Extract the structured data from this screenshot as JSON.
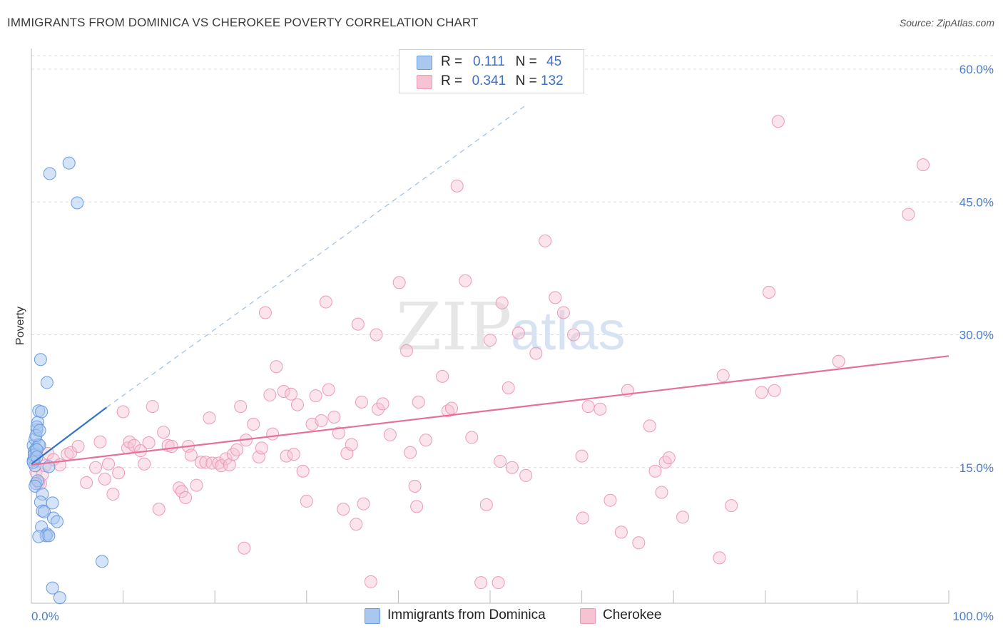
{
  "header": {
    "title": "IMMIGRANTS FROM DOMINICA VS CHEROKEE POVERTY CORRELATION CHART",
    "source": "Source: ZipAtlas.com"
  },
  "watermark": {
    "part1": "ZIP",
    "part2": "atlas"
  },
  "legend": {
    "series1": {
      "r_label": "R = ",
      "r_value": "0.111",
      "n_label": "N = ",
      "n_value": "45"
    },
    "series2": {
      "r_label": "R = ",
      "r_value": "0.341",
      "n_label": "N = ",
      "n_value": "132"
    }
  },
  "bottom_legend": {
    "series1": "Immigrants from Dominica",
    "series2": "Cherokee"
  },
  "colors": {
    "blue_fill": "#a9c7ef",
    "blue_stroke": "#6a9be0",
    "blue_line": "#2f74d0",
    "pink_fill": "#f6c3d3",
    "pink_stroke": "#ec9ab6",
    "pink_line": "#e5709b",
    "grid": "#dcdcdc",
    "tick_text": "#4a7cc9"
  },
  "chart_data": {
    "type": "scatter",
    "title": "IMMIGRANTS FROM DOMINICA VS CHEROKEE POVERTY CORRELATION CHART",
    "xlabel": "",
    "ylabel": "Poverty",
    "xlim": [
      0,
      100
    ],
    "ylim": [
      0,
      60
    ],
    "x_tick_labels": [
      "0.0%",
      "100.0%"
    ],
    "y_ticks": [
      15,
      30,
      45,
      60
    ],
    "y_tick_labels": [
      "15.0%",
      "30.0%",
      "45.0%",
      "60.0%"
    ],
    "grid": true,
    "legend_position": "top-center",
    "series": [
      {
        "name": "Immigrants from Dominica",
        "R": 0.111,
        "N": 45,
        "trend": {
          "x": [
            0,
            8.2
          ],
          "y": [
            15.4,
            21.8
          ]
        },
        "trend_extension": {
          "x": [
            8.2,
            54
          ],
          "y": [
            21.8,
            56
          ]
        },
        "points": [
          [
            0.2,
            17.5
          ],
          [
            0.4,
            18.2
          ],
          [
            0.3,
            16.8
          ],
          [
            0.5,
            17.1
          ],
          [
            0.6,
            19.3
          ],
          [
            0.3,
            16.0
          ],
          [
            0.8,
            17.6
          ],
          [
            0.5,
            16.5
          ],
          [
            0.2,
            15.8
          ],
          [
            0.4,
            15.2
          ],
          [
            0.7,
            20.1
          ],
          [
            0.8,
            21.4
          ],
          [
            0.6,
            19.6
          ],
          [
            1.1,
            21.3
          ],
          [
            0.9,
            17.5
          ],
          [
            0.3,
            16.4
          ],
          [
            0.5,
            18.6
          ],
          [
            0.2,
            15.6
          ],
          [
            0.6,
            17.0
          ],
          [
            0.9,
            19.2
          ],
          [
            1.0,
            27.2
          ],
          [
            1.7,
            24.6
          ],
          [
            0.5,
            13.2
          ],
          [
            0.7,
            13.5
          ],
          [
            0.4,
            12.9
          ],
          [
            1.2,
            12.0
          ],
          [
            1.0,
            11.1
          ],
          [
            2.3,
            11.0
          ],
          [
            1.2,
            10.1
          ],
          [
            1.4,
            10.0
          ],
          [
            2.4,
            9.3
          ],
          [
            2.8,
            8.9
          ],
          [
            1.1,
            8.3
          ],
          [
            1.7,
            7.5
          ],
          [
            1.6,
            7.3
          ],
          [
            0.8,
            7.2
          ],
          [
            1.9,
            7.3
          ],
          [
            2.0,
            48.2
          ],
          [
            4.1,
            49.4
          ],
          [
            5.0,
            44.9
          ],
          [
            7.7,
            4.4
          ],
          [
            2.3,
            1.4
          ],
          [
            3.1,
            0.3
          ],
          [
            0.6,
            16.2
          ],
          [
            1.9,
            15.1
          ]
        ]
      },
      {
        "name": "Cherokee",
        "R": 0.341,
        "N": 132,
        "trend": {
          "x": [
            0,
            100
          ],
          "y": [
            15.3,
            27.6
          ]
        },
        "points": [
          [
            0.5,
            14.5
          ],
          [
            0.8,
            13.3
          ],
          [
            1.0,
            13.2
          ],
          [
            1.2,
            14.2
          ],
          [
            1.5,
            15.2
          ],
          [
            1.8,
            16.6
          ],
          [
            2.4,
            15.9
          ],
          [
            3.1,
            15.3
          ],
          [
            3.9,
            16.5
          ],
          [
            4.3,
            16.7
          ],
          [
            5.1,
            17.4
          ],
          [
            6.0,
            13.3
          ],
          [
            7.0,
            15.0
          ],
          [
            7.5,
            17.9
          ],
          [
            8.0,
            13.7
          ],
          [
            8.4,
            15.4
          ],
          [
            8.9,
            12.0
          ],
          [
            9.5,
            14.4
          ],
          [
            10.0,
            21.3
          ],
          [
            10.5,
            17.2
          ],
          [
            10.7,
            17.9
          ],
          [
            11.2,
            17.5
          ],
          [
            11.9,
            16.9
          ],
          [
            12.3,
            15.4
          ],
          [
            12.8,
            17.8
          ],
          [
            13.2,
            21.9
          ],
          [
            13.9,
            10.3
          ],
          [
            14.4,
            19.0
          ],
          [
            14.9,
            17.5
          ],
          [
            15.3,
            17.4
          ],
          [
            16.1,
            12.7
          ],
          [
            16.4,
            12.3
          ],
          [
            16.8,
            11.6
          ],
          [
            17.1,
            17.4
          ],
          [
            17.4,
            16.4
          ],
          [
            18.0,
            13.0
          ],
          [
            18.5,
            15.6
          ],
          [
            19.0,
            15.6
          ],
          [
            19.4,
            20.6
          ],
          [
            19.7,
            15.5
          ],
          [
            20.4,
            15.5
          ],
          [
            20.7,
            15.2
          ],
          [
            21.2,
            16.0
          ],
          [
            21.6,
            15.3
          ],
          [
            22.0,
            16.5
          ],
          [
            22.4,
            17.0
          ],
          [
            22.8,
            21.9
          ],
          [
            23.2,
            5.9
          ],
          [
            23.4,
            18.1
          ],
          [
            24.2,
            19.9
          ],
          [
            24.8,
            16.2
          ],
          [
            25.1,
            17.2
          ],
          [
            25.5,
            32.5
          ],
          [
            26.0,
            23.2
          ],
          [
            26.3,
            18.8
          ],
          [
            26.7,
            26.4
          ],
          [
            27.5,
            23.6
          ],
          [
            27.8,
            16.3
          ],
          [
            28.3,
            23.3
          ],
          [
            28.6,
            16.5
          ],
          [
            29.0,
            22.1
          ],
          [
            29.6,
            14.6
          ],
          [
            30.0,
            11.2
          ],
          [
            30.6,
            19.9
          ],
          [
            31.0,
            23.1
          ],
          [
            31.6,
            20.3
          ],
          [
            32.1,
            33.7
          ],
          [
            32.4,
            23.8
          ],
          [
            33.0,
            20.7
          ],
          [
            33.5,
            18.9
          ],
          [
            34.0,
            10.3
          ],
          [
            34.4,
            16.6
          ],
          [
            34.9,
            17.6
          ],
          [
            35.4,
            8.6
          ],
          [
            35.6,
            31.2
          ],
          [
            36.0,
            22.4
          ],
          [
            36.2,
            10.9
          ],
          [
            37.0,
            2.1
          ],
          [
            37.6,
            30.0
          ],
          [
            37.8,
            21.6
          ],
          [
            38.3,
            22.2
          ],
          [
            39.1,
            18.7
          ],
          [
            40.1,
            35.9
          ],
          [
            40.9,
            28.2
          ],
          [
            41.3,
            16.7
          ],
          [
            41.8,
            12.9
          ],
          [
            42.0,
            10.6
          ],
          [
            42.2,
            22.4
          ],
          [
            43.0,
            18.1
          ],
          [
            44.8,
            25.3
          ],
          [
            45.4,
            21.4
          ],
          [
            45.8,
            21.7
          ],
          [
            46.4,
            46.8
          ],
          [
            47.3,
            36.1
          ],
          [
            48.0,
            18.4
          ],
          [
            49.0,
            2.0
          ],
          [
            49.6,
            10.8
          ],
          [
            50.0,
            29.4
          ],
          [
            50.9,
            2.0
          ],
          [
            51.1,
            15.7
          ],
          [
            51.3,
            33.6
          ],
          [
            52.0,
            24.0
          ],
          [
            52.4,
            15.0
          ],
          [
            53.1,
            30.2
          ],
          [
            53.9,
            14.1
          ],
          [
            55.0,
            27.9
          ],
          [
            56.0,
            40.6
          ],
          [
            57.1,
            34.2
          ],
          [
            58.0,
            32.5
          ],
          [
            59.1,
            30.0
          ],
          [
            60.0,
            16.3
          ],
          [
            60.1,
            9.3
          ],
          [
            60.7,
            21.9
          ],
          [
            62.0,
            21.6
          ],
          [
            63.1,
            11.3
          ],
          [
            64.3,
            7.7
          ],
          [
            65.0,
            23.7
          ],
          [
            66.2,
            6.5
          ],
          [
            67.4,
            19.7
          ],
          [
            68.0,
            14.6
          ],
          [
            68.7,
            12.2
          ],
          [
            69.1,
            15.6
          ],
          [
            69.5,
            16.1
          ],
          [
            71.0,
            9.4
          ],
          [
            75.0,
            4.8
          ],
          [
            75.4,
            25.4
          ],
          [
            76.3,
            10.7
          ],
          [
            79.6,
            23.5
          ],
          [
            80.4,
            34.8
          ],
          [
            81.0,
            23.7
          ],
          [
            81.4,
            54.1
          ],
          [
            88.0,
            27.0
          ],
          [
            95.6,
            43.6
          ],
          [
            97.2,
            49.2
          ]
        ]
      }
    ]
  }
}
